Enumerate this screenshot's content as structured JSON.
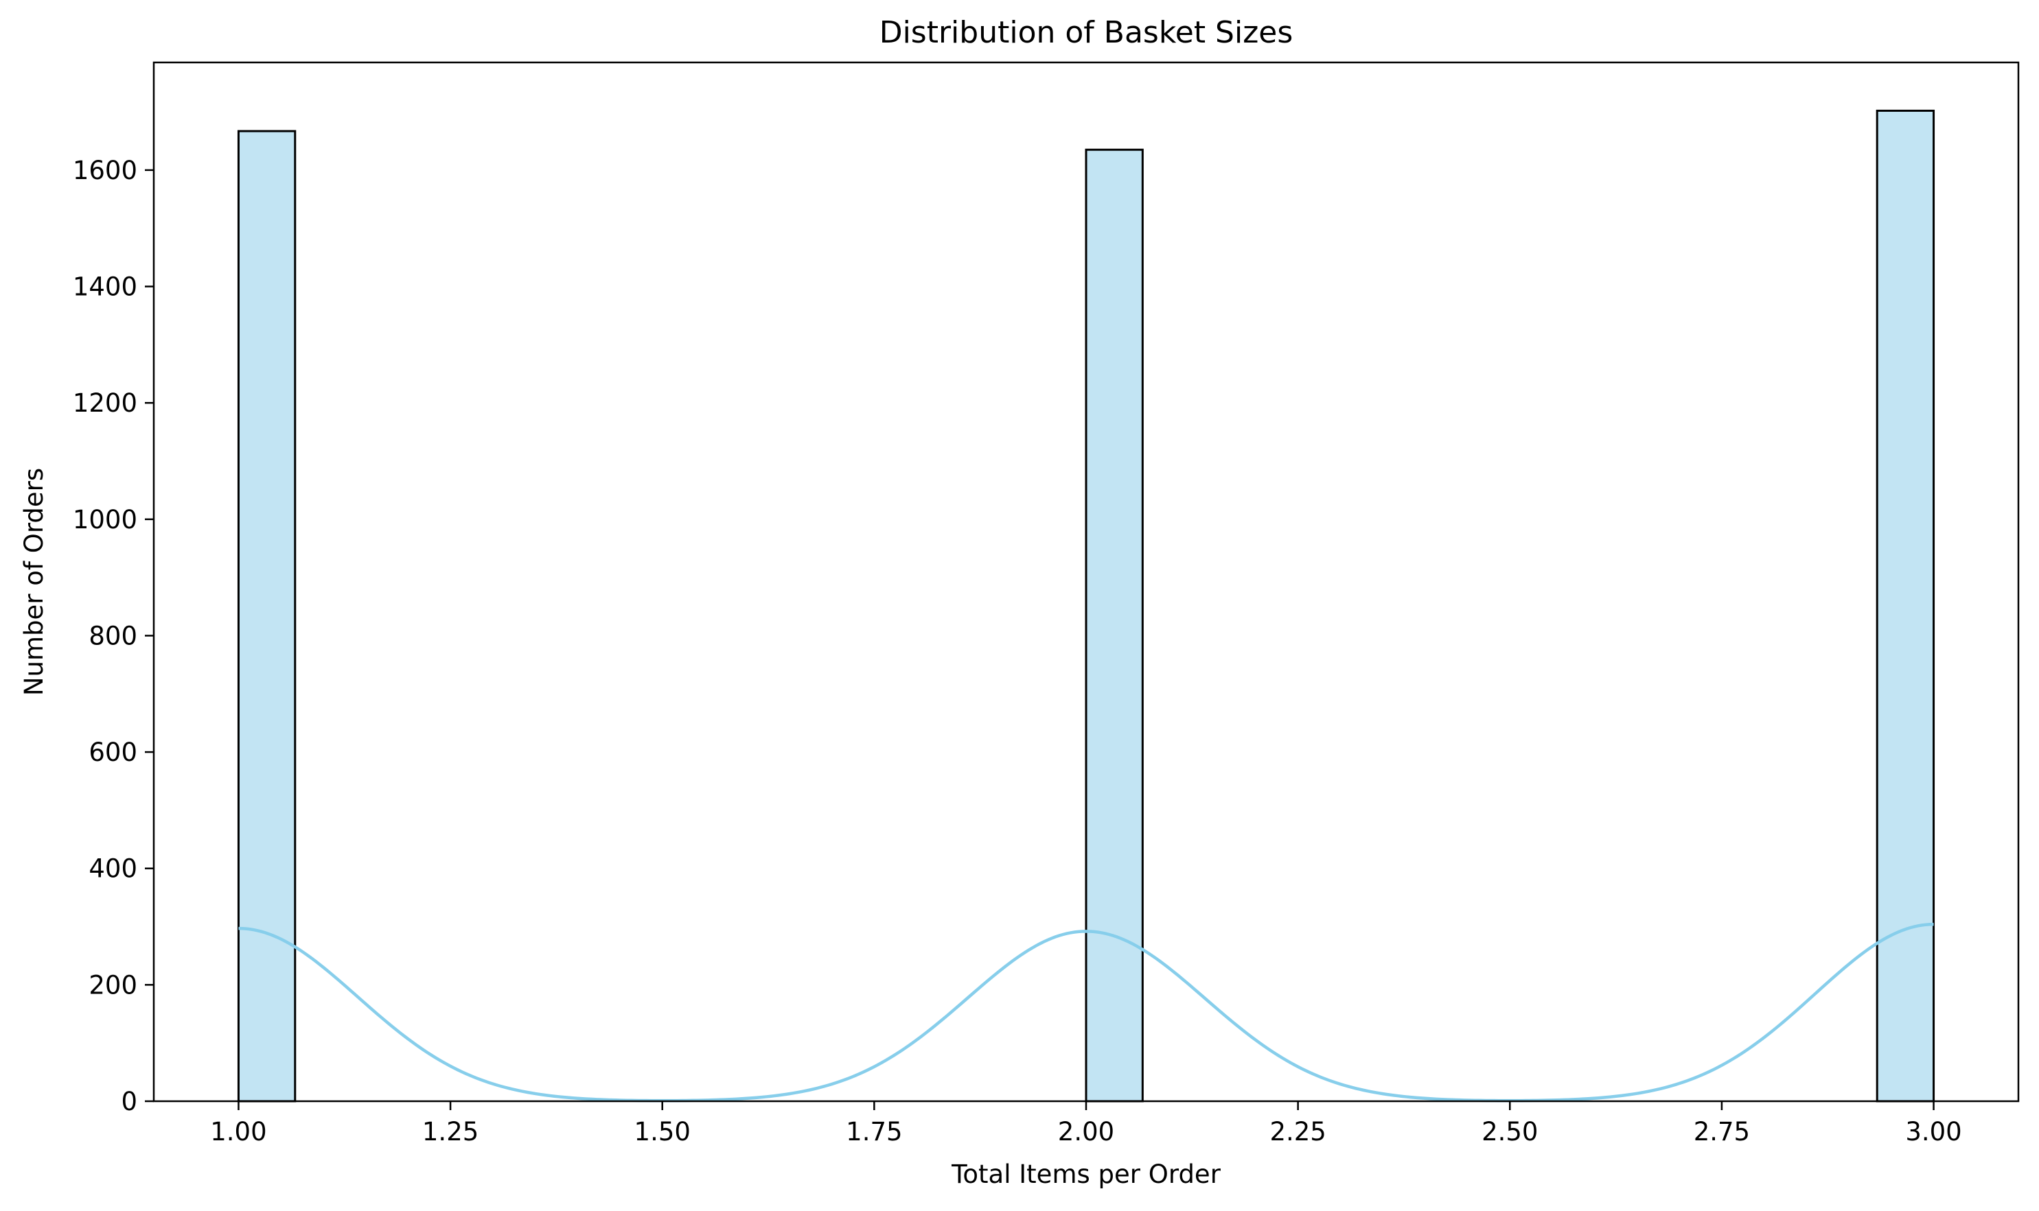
{
  "chart_data": {
    "type": "bar",
    "title": "Distribution of Basket Sizes",
    "xlabel": "Total Items per Order",
    "ylabel": "Number of Orders",
    "xlim": [
      0.9,
      3.1
    ],
    "ylim": [
      0,
      1785
    ],
    "xticks": [
      1.0,
      1.25,
      1.5,
      1.75,
      2.0,
      2.25,
      2.5,
      2.75,
      3.0
    ],
    "xtick_labels": [
      "1.00",
      "1.25",
      "1.50",
      "1.75",
      "2.00",
      "2.25",
      "2.50",
      "2.75",
      "3.00"
    ],
    "yticks": [
      0,
      200,
      400,
      600,
      800,
      1000,
      1200,
      1400,
      1600
    ],
    "ytick_labels": [
      "0",
      "200",
      "400",
      "600",
      "800",
      "1000",
      "1200",
      "1400",
      "1600"
    ],
    "bins": [
      {
        "x_start": 1.0,
        "x_end": 1.0667,
        "count": 1667
      },
      {
        "x_start": 2.0,
        "x_end": 2.0667,
        "count": 1635
      },
      {
        "x_start": 2.9333,
        "x_end": 3.0,
        "count": 1702
      }
    ],
    "kde": {
      "peaks": [
        {
          "x": 1.0,
          "y": 297
        },
        {
          "x": 2.0,
          "y": 292
        },
        {
          "x": 3.0,
          "y": 304
        }
      ],
      "bandwidth": 0.14
    },
    "grid": false,
    "colors": {
      "bar_fill": "#c2e4f3",
      "bar_edge": "#000000",
      "kde_line": "#87ceeb"
    }
  }
}
